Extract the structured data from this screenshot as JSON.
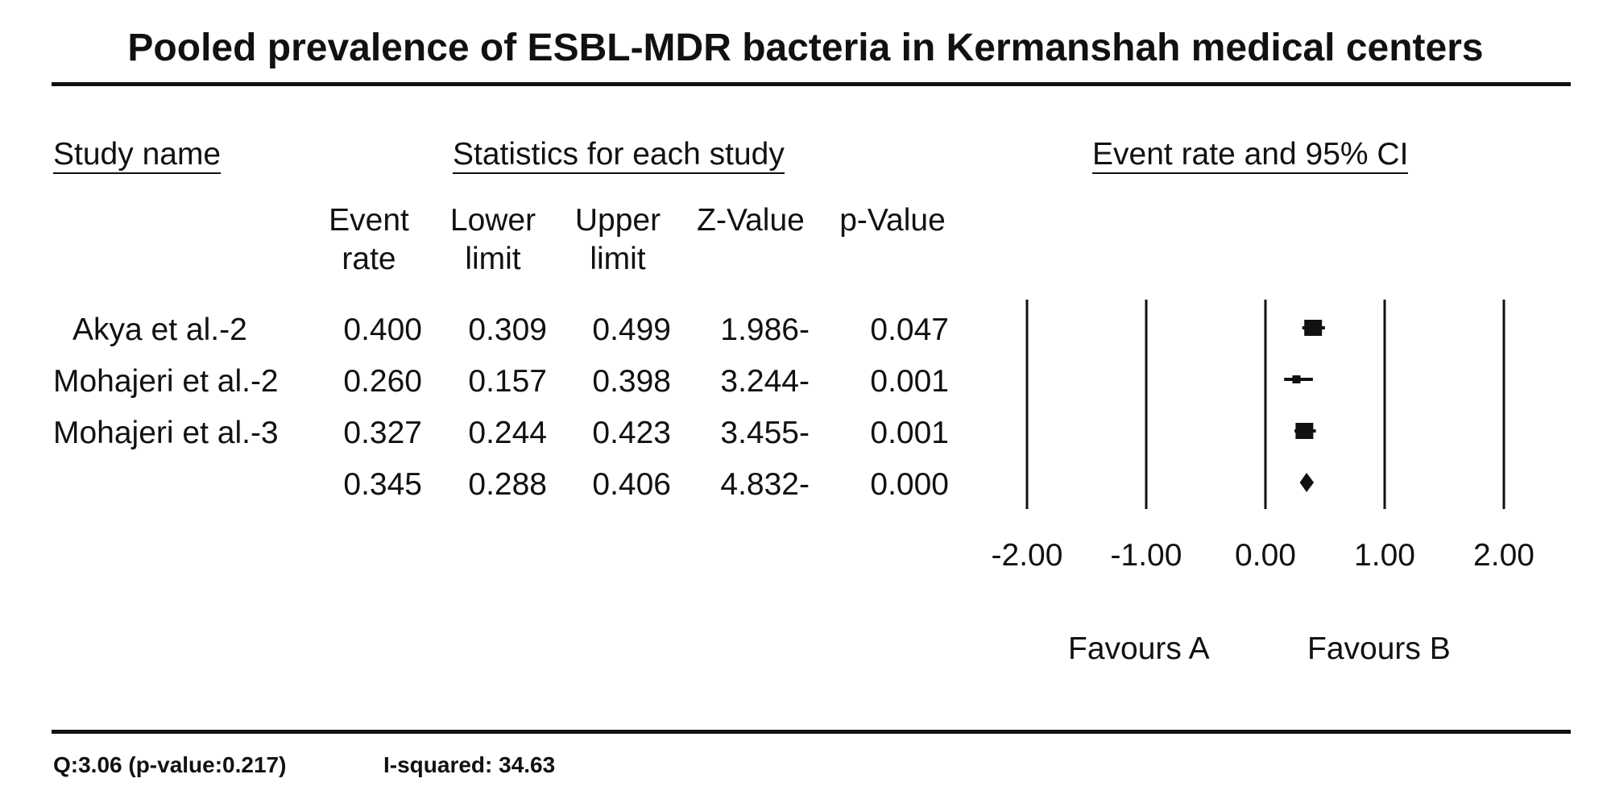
{
  "chart_data": {
    "type": "forest",
    "title": "Pooled prevalence of ESBL-MDR bacteria in Kermanshah medical centers",
    "headers": {
      "study_name": "Study name",
      "statistics": "Statistics for each study",
      "plot": "Event rate and 95% CI"
    },
    "columns": [
      {
        "line1": "Event",
        "line2": "rate"
      },
      {
        "line1": "Lower",
        "line2": "limit"
      },
      {
        "line1": "Upper",
        "line2": "limit"
      },
      {
        "line1": "",
        "line2": "Z-Value"
      },
      {
        "line1": "",
        "line2": "p-Value"
      }
    ],
    "rows": [
      {
        "study": "Akya et al.-2",
        "event_rate": "0.400",
        "lower": "0.309",
        "upper": "0.499",
        "z": "1.986-",
        "p": "0.047",
        "estimate": 0.4,
        "ci": [
          0.309,
          0.499
        ],
        "marker": "square"
      },
      {
        "study": "Mohajeri et al.-2",
        "event_rate": "0.260",
        "lower": "0.157",
        "upper": "0.398",
        "z": "3.244-",
        "p": "0.001",
        "estimate": 0.26,
        "ci": [
          0.157,
          0.398
        ],
        "marker": "square"
      },
      {
        "study": "Mohajeri et al.-3",
        "event_rate": "0.327",
        "lower": "0.244",
        "upper": "0.423",
        "z": "3.455-",
        "p": "0.001",
        "estimate": 0.327,
        "ci": [
          0.244,
          0.423
        ],
        "marker": "square"
      },
      {
        "study": "",
        "event_rate": "0.345",
        "lower": "0.288",
        "upper": "0.406",
        "z": "4.832-",
        "p": "0.000",
        "estimate": 0.345,
        "ci": [
          0.288,
          0.406
        ],
        "marker": "diamond"
      }
    ],
    "x_ticks": [
      "-2.00",
      "-1.00",
      "0.00",
      "1.00",
      "2.00"
    ],
    "xlim": [
      -2,
      2
    ],
    "favours": {
      "left": "Favours A",
      "right": "Favours B"
    },
    "footer": {
      "q": "Q:3.06 (p-value:0.217)",
      "i_squared": "I-squared: 34.63"
    }
  }
}
